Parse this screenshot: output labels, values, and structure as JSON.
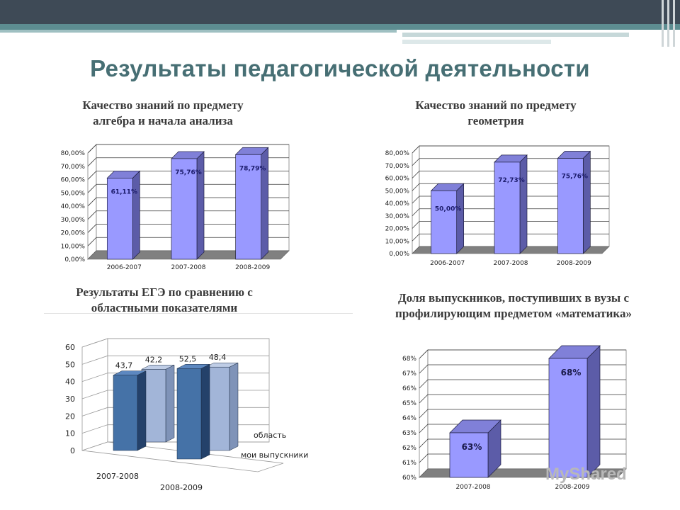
{
  "header": {
    "title": "Результаты педагогической деятельности"
  },
  "colors": {
    "bar_front": "#9999ff",
    "bar_side": "#5c5ca8",
    "bar_top": "#8080d8",
    "floor": "#808080",
    "dark_blue": "#4572a7",
    "light_blue": "#a2b5d8"
  },
  "watermark": "MyShared",
  "chart_data": [
    {
      "type": "bar",
      "title": [
        "Качество знаний по предмету",
        "алгебра и начала анализа"
      ],
      "categories": [
        "2006-2007",
        "2007-2008",
        "2008-2009"
      ],
      "values": [
        61.11,
        75.76,
        78.79
      ],
      "value_labels": [
        "61,11%",
        "75,76%",
        "78,79%"
      ],
      "yticks": [
        "0,00%",
        "10,00%",
        "20,00%",
        "30,00%",
        "40,00%",
        "50,00%",
        "60,00%",
        "70,00%",
        "80,00%"
      ],
      "ylim": [
        0,
        80
      ]
    },
    {
      "type": "bar",
      "title": [
        "Качество знаний по предмету",
        "геометрия"
      ],
      "categories": [
        "2006-2007",
        "2007-2008",
        "2008-2009"
      ],
      "values": [
        50.0,
        72.73,
        75.76
      ],
      "value_labels": [
        "50,00%",
        "72,73%",
        "75,76%"
      ],
      "yticks": [
        "0,00%",
        "10,00%",
        "20,00%",
        "30,00%",
        "40,00%",
        "50,00%",
        "60,00%",
        "70,00%",
        "80,00%"
      ],
      "ylim": [
        0,
        80
      ]
    },
    {
      "type": "bar",
      "title": [
        "Результаты ЕГЭ по сравнению с",
        "областными показателями"
      ],
      "categories": [
        "2007-2008",
        "2008-2009"
      ],
      "series": [
        {
          "name": "мои выпускники",
          "values": [
            43.7,
            52.5
          ],
          "labels": [
            "43,7",
            "52,5"
          ]
        },
        {
          "name": "область",
          "values": [
            42.2,
            48.4
          ],
          "labels": [
            "42,2",
            "48,4"
          ]
        }
      ],
      "yticks": [
        "0",
        "10",
        "20",
        "30",
        "40",
        "50",
        "60"
      ],
      "ylim": [
        0,
        60
      ]
    },
    {
      "type": "bar",
      "title": [
        "Доля выпускников, поступивших в вузы с",
        "профилирующим предметом «математика»"
      ],
      "categories": [
        "2007-2008",
        "2008-2009"
      ],
      "values": [
        63,
        68
      ],
      "value_labels": [
        "63%",
        "68%"
      ],
      "yticks": [
        "60%",
        "61%",
        "62%",
        "63%",
        "64%",
        "65%",
        "66%",
        "67%",
        "68%"
      ],
      "ylim": [
        60,
        68
      ]
    }
  ]
}
